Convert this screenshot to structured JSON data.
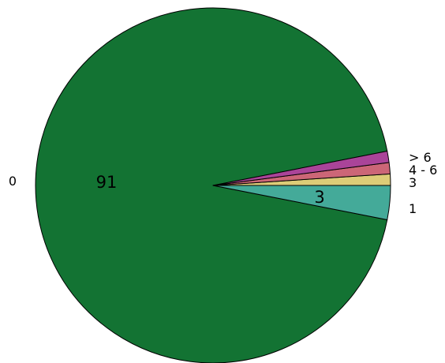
{
  "chart_data": {
    "type": "pie",
    "title": "",
    "slices": [
      {
        "label": "0",
        "value": 91,
        "value_label": "91",
        "color": "#137333"
      },
      {
        "label": "1",
        "value": 3,
        "value_label": "3",
        "color": "#44aa99"
      },
      {
        "label": "3",
        "value": 1,
        "value_label": "",
        "color": "#ddcc77"
      },
      {
        "label": "4 - 6",
        "value": 1,
        "value_label": "",
        "color": "#cc6677"
      },
      {
        "label": "> 6",
        "value": 1,
        "value_label": "",
        "color": "#aa4499"
      }
    ],
    "legend": "none"
  }
}
